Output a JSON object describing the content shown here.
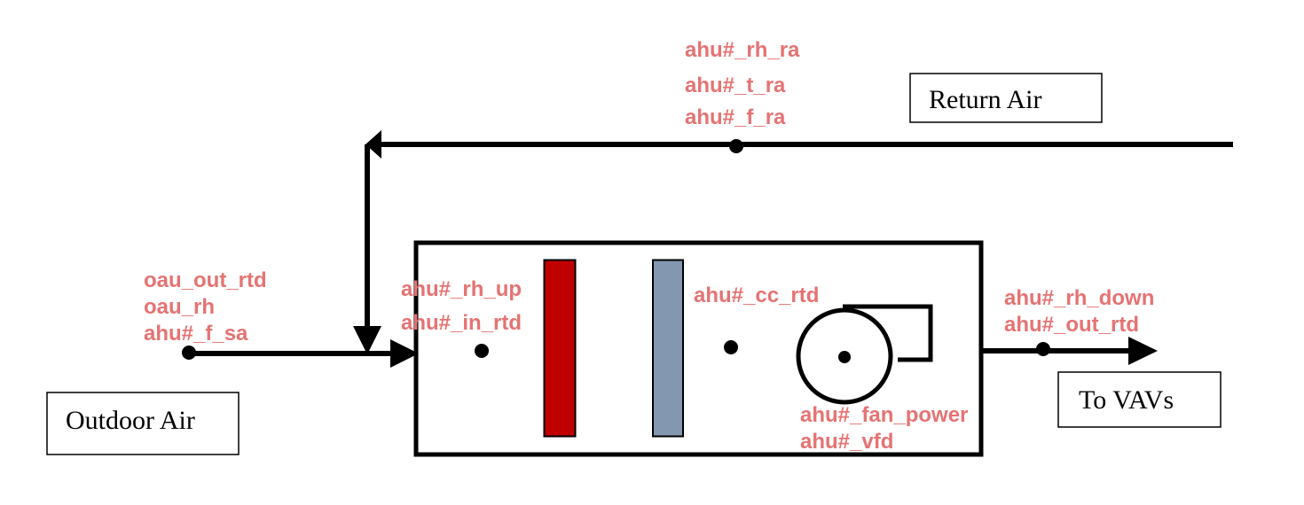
{
  "colors": {
    "line": "#000000",
    "sensor_label": "#e57373",
    "heating_coil": "#c00000",
    "cooling_coil": "#8497b0",
    "background": "#ffffff"
  },
  "boxes": {
    "return_air": "Return Air",
    "outdoor_air": "Outdoor Air",
    "to_vavs": "To VAVs"
  },
  "sensors": {
    "return_air": [
      "ahu#_rh_ra",
      "ahu#_t_ra",
      "ahu#_f_ra"
    ],
    "outdoor_air": [
      "oau_out_rtd",
      "oau_rh",
      "ahu#_f_sa"
    ],
    "mixed_air": [
      "ahu#_rh_up",
      "ahu#_in_rtd"
    ],
    "cooling_coil": "ahu#_cc_rtd",
    "discharge": [
      "ahu#_rh_down",
      "ahu#_out_rtd"
    ],
    "fan": [
      "ahu#_fan_power",
      "ahu#_vfd"
    ]
  }
}
